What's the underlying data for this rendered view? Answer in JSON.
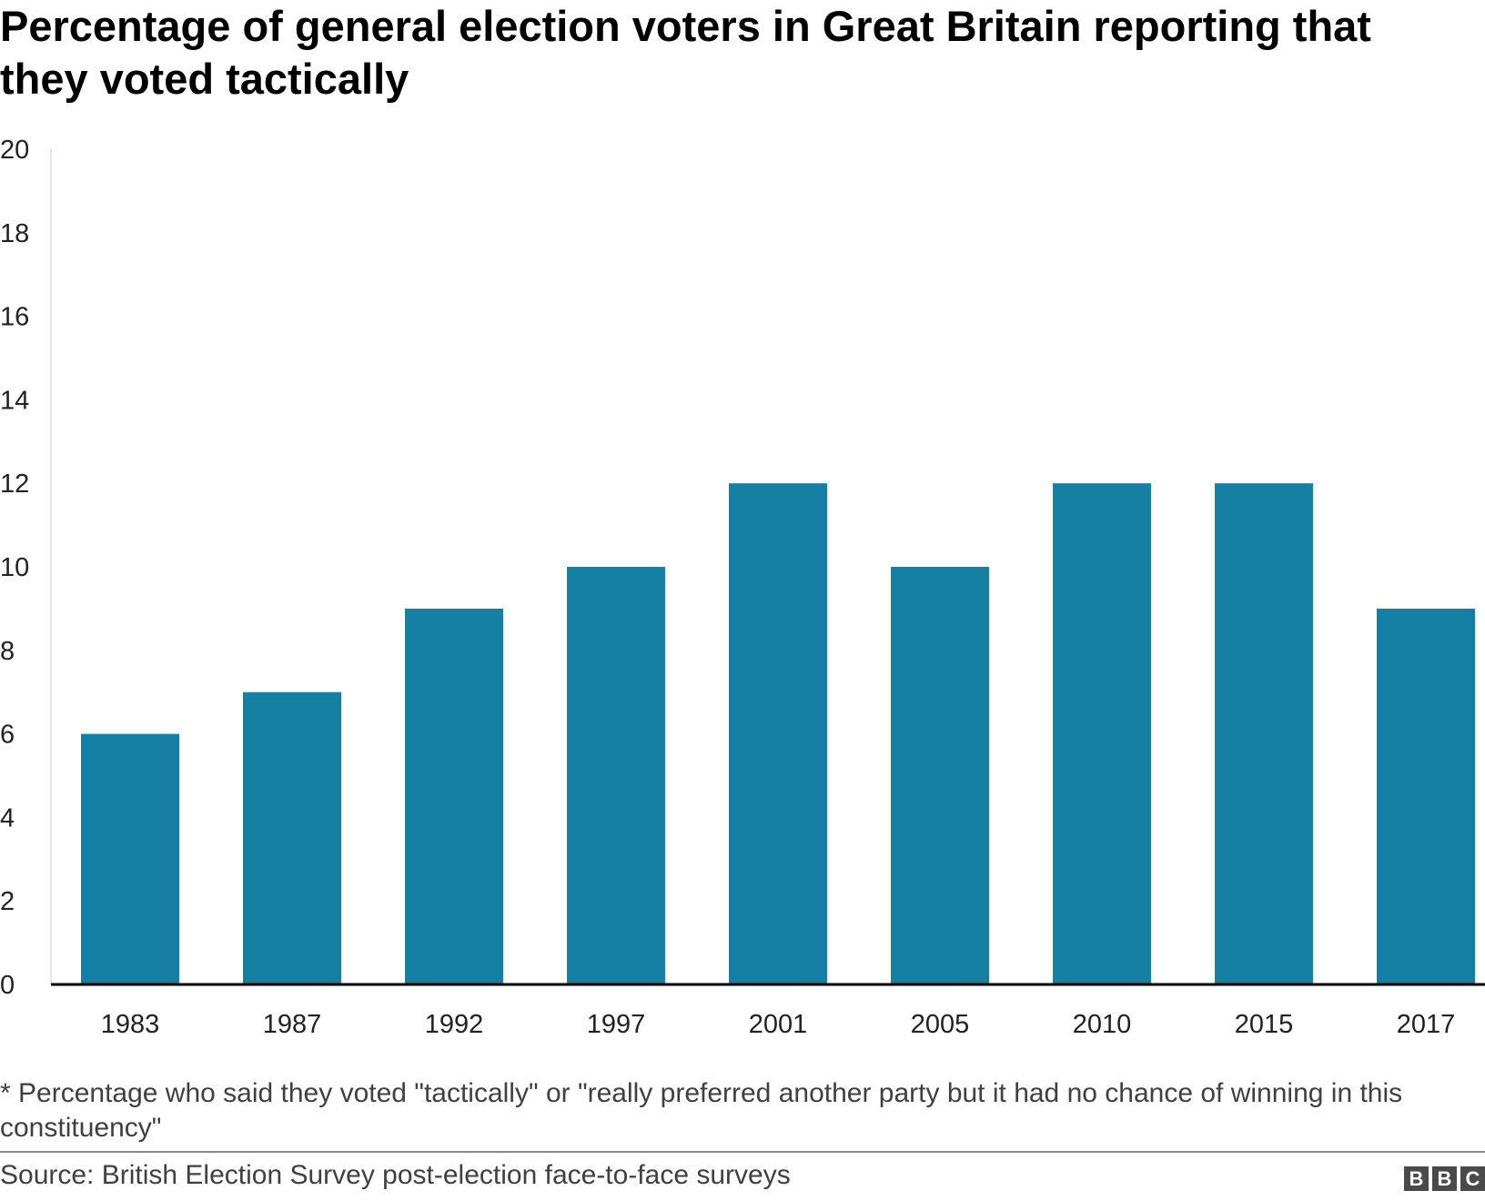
{
  "title": "Percentage of general election voters in Great Britain reporting that they voted tactically",
  "footnote": "* Percentage who said they voted \"tactically\" or \"really preferred another party but it had no chance of winning in this constituency\"",
  "source": "Source: British Election Survey post-election face-to-face surveys",
  "logo": {
    "letters": [
      "B",
      "B",
      "C"
    ]
  },
  "colors": {
    "bar": "#1580a3",
    "axis": "#000000",
    "tick_text": "#222222"
  },
  "chart_data": {
    "type": "bar",
    "title": "Percentage of general election voters in Great Britain reporting that they voted tactically",
    "xlabel": "",
    "ylabel": "",
    "categories": [
      "1983",
      "1987",
      "1992",
      "1997",
      "2001",
      "2005",
      "2010",
      "2015",
      "2017"
    ],
    "values": [
      6,
      7,
      9,
      10,
      12,
      10,
      12,
      12,
      9
    ],
    "ylim": [
      0,
      20
    ],
    "yticks": [
      0,
      2,
      4,
      6,
      8,
      10,
      12,
      14,
      16,
      18,
      20
    ],
    "grid": false,
    "legend": "none"
  }
}
